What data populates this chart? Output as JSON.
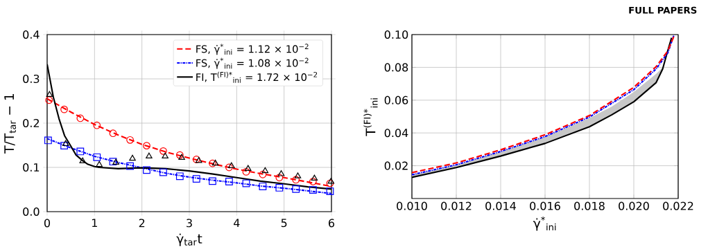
{
  "chart_data": [
    {
      "type": "line",
      "xlabel": "γ̇$_{tar}$t",
      "ylabel": "T/T$_{tar}$ − 1",
      "annotations": [
        "FULL PAPERS"
      ],
      "xlim": [
        0,
        6
      ],
      "ylim": [
        0.0,
        0.4
      ],
      "xticks": [
        0,
        1,
        2,
        3,
        4,
        5,
        6
      ],
      "yticks": [
        {
          "value": 0,
          "label": "0.0"
        },
        0.1,
        0.2,
        0.3,
        0.4
      ],
      "grid": true,
      "legend": "top right",
      "series": [
        {
          "name": "FS, γ̇$^{*}$$_{ini}$ = 1.12 × 10$^{−2}$",
          "color": "#ff0000",
          "line_style": "dashed",
          "x": [
            0,
            0.5,
            1,
            1.5,
            2,
            2.5,
            3,
            3.5,
            4,
            4.5,
            5,
            5.5,
            6
          ],
          "values": [
            0.255,
            0.225,
            0.197,
            0.173,
            0.152,
            0.135,
            0.121,
            0.108,
            0.096,
            0.086,
            0.077,
            0.067,
            0.057
          ]
        },
        {
          "name": "FS, γ̇$^{*}$$_{ini}$ = 1.08 × 10$^{−2}$",
          "color": "#0000ff",
          "line_style": "dashdot",
          "x": [
            0,
            0.5,
            1,
            1.5,
            2,
            2.5,
            3,
            3.5,
            4,
            4.5,
            5,
            5.5,
            6
          ],
          "values": [
            0.165,
            0.144,
            0.125,
            0.111,
            0.099,
            0.087,
            0.078,
            0.071,
            0.065,
            0.058,
            0.053,
            0.047,
            0.041
          ]
        },
        {
          "name": "FI, T$^{(FI)*}$$_{ini}$ = 1.72 × 10$^{−2}$",
          "color": "#000000",
          "line_style": "solid",
          "x": [
            0,
            0.13,
            0.25,
            0.37,
            0.5,
            0.61,
            0.75,
            0.86,
            1,
            1.1,
            1.5,
            2,
            2.5,
            3,
            3.5,
            4,
            4.5,
            5,
            5.5,
            6
          ],
          "values": [
            0.333,
            0.259,
            0.21,
            0.171,
            0.148,
            0.128,
            0.115,
            0.107,
            0.102,
            0.1,
            0.097,
            0.099,
            0.097,
            0.092,
            0.085,
            0.077,
            0.069,
            0.063,
            0.056,
            0.051
          ]
        },
        {
          "type": "scatter",
          "color": "#ff0000",
          "marker": "circle",
          "x": [
            0.04,
            0.36,
            0.7,
            1.05,
            1.39,
            1.75,
            2.1,
            2.45,
            2.8,
            3.15,
            3.49,
            3.84,
            4.2,
            4.55,
            4.9,
            5.25,
            5.61,
            5.97
          ],
          "values": [
            0.252,
            0.231,
            0.211,
            0.195,
            0.177,
            0.162,
            0.149,
            0.137,
            0.128,
            0.118,
            0.109,
            0.1,
            0.09,
            0.084,
            0.077,
            0.072,
            0.068,
            0.064
          ]
        },
        {
          "type": "scatter",
          "color": "#0000ff",
          "marker": "square",
          "x": [
            0.02,
            0.36,
            0.7,
            1.05,
            1.39,
            1.75,
            2.1,
            2.45,
            2.8,
            3.15,
            3.49,
            3.84,
            4.2,
            4.55,
            4.9,
            5.25,
            5.61,
            5.97
          ],
          "values": [
            0.161,
            0.149,
            0.136,
            0.123,
            0.113,
            0.103,
            0.094,
            0.089,
            0.08,
            0.074,
            0.069,
            0.068,
            0.064,
            0.057,
            0.054,
            0.051,
            0.049,
            0.046
          ]
        },
        {
          "type": "scatter",
          "color": "#000000",
          "marker": "triangle",
          "x": [
            0.05,
            0.39,
            0.75,
            1.1,
            1.45,
            1.8,
            2.15,
            2.49,
            2.84,
            3.2,
            3.55,
            3.89,
            4.24,
            4.6,
            4.94,
            5.29,
            5.64,
            5.99
          ],
          "values": [
            0.264,
            0.153,
            0.114,
            0.106,
            0.111,
            0.12,
            0.125,
            0.125,
            0.122,
            0.115,
            0.109,
            0.103,
            0.097,
            0.092,
            0.085,
            0.08,
            0.075,
            0.068
          ]
        }
      ]
    },
    {
      "type": "line",
      "xlabel": "γ̇$^{*}$$_{ini}$",
      "ylabel": "T$^{(FI)*}$$_{ini}$",
      "xlim": [
        0.01,
        0.022
      ],
      "ylim": [
        0.0,
        0.1
      ],
      "xticks": [
        {
          "value": 0.01,
          "label": "0.010"
        },
        0.012,
        0.014,
        0.016,
        0.018,
        {
          "value": 0.02,
          "label": "0.020"
        },
        0.022
      ],
      "yticks": [
        0.02,
        0.04,
        0.06,
        0.08,
        {
          "value": 0.1,
          "label": "0.10"
        }
      ],
      "grid": true,
      "series": [
        {
          "color": "#000000",
          "line_style": "solid",
          "x": [
            0.01,
            0.012,
            0.014,
            0.016,
            0.018,
            0.019,
            0.02,
            0.021,
            0.0213,
            0.0215,
            0.0217
          ],
          "values": [
            0.0129,
            0.0189,
            0.0259,
            0.0336,
            0.0438,
            0.051,
            0.059,
            0.0706,
            0.079,
            0.0888,
            0.098
          ],
          "lower": [
            0.0129,
            0.0189,
            0.0259,
            0.0336,
            0.0438,
            0.051,
            0.059,
            0.0706,
            0.079,
            0.0888,
            0.098
          ],
          "upper": [
            0.0145,
            0.0205,
            0.0285,
            0.0375,
            0.049,
            0.056,
            0.065,
            0.076,
            0.08,
            0.087,
            0.1
          ]
        },
        {
          "color": "#0000ff",
          "line_style": "dashdot",
          "x": [
            0.01,
            0.012,
            0.014,
            0.016,
            0.018,
            0.02,
            0.021,
            0.02153,
            0.0218
          ],
          "values": [
            0.0145,
            0.0206,
            0.0287,
            0.0378,
            0.0497,
            0.0664,
            0.079,
            0.0888,
            0.0993
          ]
        },
        {
          "color": "#ff0000",
          "line_style": "dashed",
          "x": [
            0.01,
            0.012,
            0.014,
            0.016,
            0.018,
            0.02,
            0.021,
            0.02153,
            0.02184
          ],
          "values": [
            0.0158,
            0.0217,
            0.0297,
            0.0389,
            0.0506,
            0.0678,
            0.0804,
            0.09,
            0.1
          ]
        }
      ]
    }
  ]
}
